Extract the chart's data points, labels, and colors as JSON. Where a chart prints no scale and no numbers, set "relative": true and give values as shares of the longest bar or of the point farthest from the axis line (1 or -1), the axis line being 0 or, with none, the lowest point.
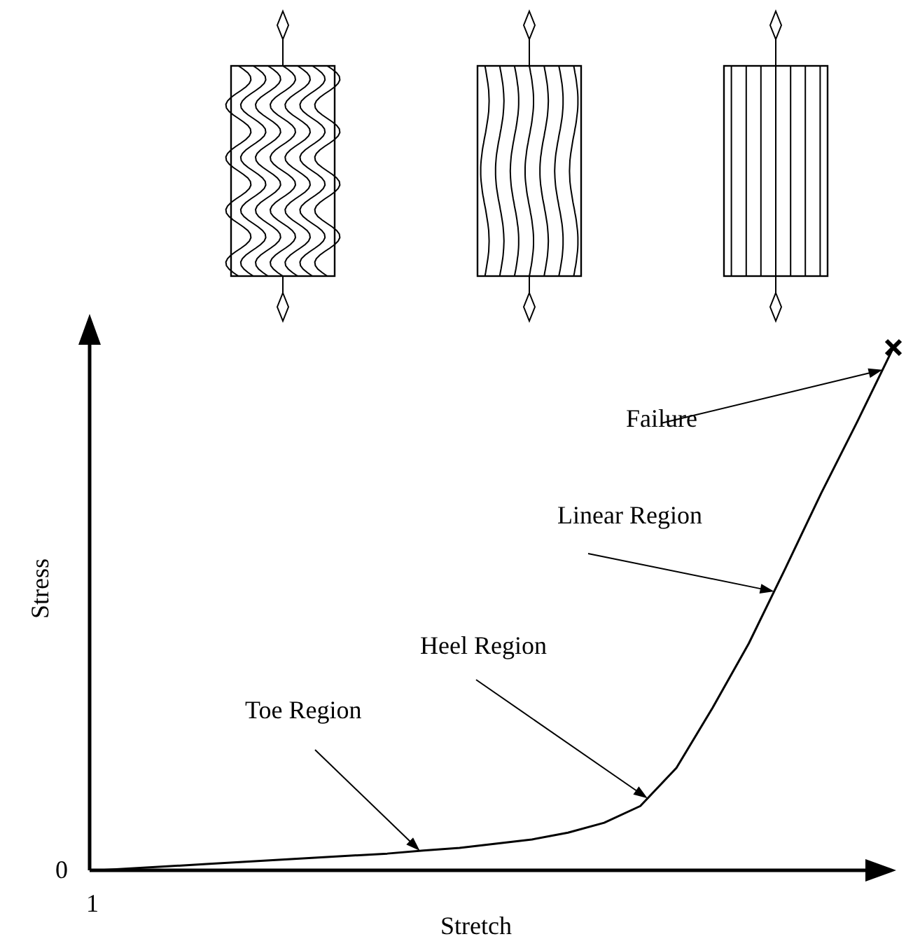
{
  "chart_data": {
    "type": "line",
    "xlabel": "Stretch",
    "ylabel": "Stress",
    "relative": true,
    "categories": [
      null,
      null,
      null,
      null,
      null,
      null,
      null,
      null,
      null,
      null,
      null,
      null,
      null,
      null,
      null,
      null,
      null,
      null,
      null,
      null,
      null,
      null,
      null
    ],
    "series": [
      {
        "color": "#000000",
        "values": [
          0,
          0.004,
          0.008,
          0.012,
          0.016,
          0.02,
          0.024,
          0.028,
          0.032,
          0.038,
          0.043,
          0.051,
          0.059,
          0.072,
          0.091,
          0.123,
          0.196,
          0.311,
          0.434,
          0.576,
          0.721,
          0.858,
          1
        ]
      }
    ],
    "annotations": [
      "Toe Region",
      "Heel Region",
      "Linear Region",
      "Failure",
      "0",
      "1"
    ]
  }
}
